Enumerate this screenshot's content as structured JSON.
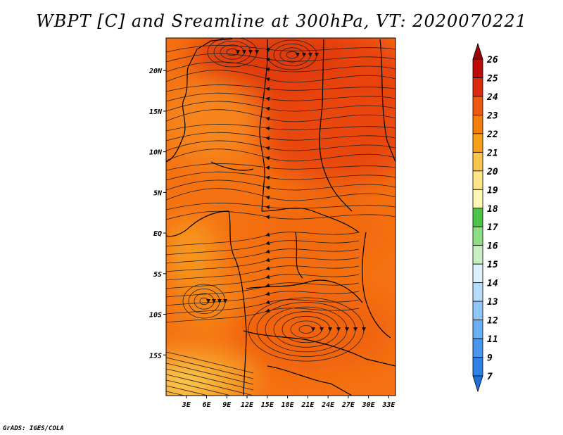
{
  "title": "WBPT [C] and Sreamline at 300hPa, VT: 2020070221",
  "credit": "GrADS: IGES/COLA",
  "map": {
    "lon_range": [
      0,
      34
    ],
    "lat_range": [
      -20,
      24
    ],
    "lon_ticks": [
      {
        "value": 3,
        "label": "3E"
      },
      {
        "value": 6,
        "label": "6E"
      },
      {
        "value": 9,
        "label": "9E"
      },
      {
        "value": 12,
        "label": "12E"
      },
      {
        "value": 15,
        "label": "15E"
      },
      {
        "value": 18,
        "label": "18E"
      },
      {
        "value": 21,
        "label": "21E"
      },
      {
        "value": 24,
        "label": "24E"
      },
      {
        "value": 27,
        "label": "27E"
      },
      {
        "value": 30,
        "label": "30E"
      },
      {
        "value": 33,
        "label": "33E"
      }
    ],
    "lat_ticks": [
      {
        "value": 20,
        "label": "20N"
      },
      {
        "value": 15,
        "label": "15N"
      },
      {
        "value": 10,
        "label": "10N"
      },
      {
        "value": 5,
        "label": "5N"
      },
      {
        "value": 0,
        "label": "EQ"
      },
      {
        "value": -5,
        "label": "5S"
      },
      {
        "value": -10,
        "label": "10S"
      },
      {
        "value": -15,
        "label": "15S"
      }
    ],
    "field": "wet-bulb potential temperature (shaded) with streamlines",
    "dominant_range_c": [
      22,
      24
    ]
  },
  "colorbar": {
    "labels": [
      "7",
      "9",
      "11",
      "12",
      "13",
      "14",
      "15",
      "16",
      "17",
      "18",
      "19",
      "20",
      "21",
      "22",
      "23",
      "24",
      "25",
      "26"
    ],
    "colors": [
      "#1e6fd8",
      "#2d82e6",
      "#4a96ee",
      "#6aaef4",
      "#90c6f8",
      "#b8dcfb",
      "#dcf0fd",
      "#c8f0c0",
      "#8ede86",
      "#4cc44a",
      "#fff6b8",
      "#ffe48a",
      "#fbc44e",
      "#f8a01c",
      "#f47e0c",
      "#ee5a10",
      "#dc2a0c",
      "#be0c08",
      "#9a0408"
    ]
  }
}
